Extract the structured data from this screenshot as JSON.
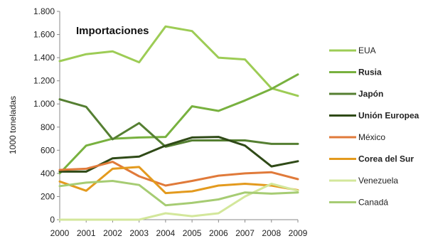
{
  "chart_data": {
    "type": "line",
    "title": "Importaciones",
    "ylabel": "1000 toneladas",
    "xlabel": "",
    "x": [
      "2000",
      "2001",
      "2002",
      "2003",
      "2004",
      "2005",
      "2006",
      "2007",
      "2008",
      "2009"
    ],
    "ylim": [
      0,
      1800
    ],
    "yticks": [
      0,
      200,
      400,
      600,
      800,
      1000,
      1200,
      1400,
      1600,
      1800
    ],
    "ytick_labels": [
      "0",
      "200",
      "400",
      "600",
      "800",
      "1.000",
      "1.200",
      "1.400",
      "1.600",
      "1.800"
    ],
    "grid": false,
    "legend": "right",
    "series": [
      {
        "name": "EUA",
        "color": "#9dcc55",
        "bold": false,
        "values": [
          1370,
          1430,
          1455,
          1360,
          1670,
          1630,
          1400,
          1385,
          1135,
          1070
        ]
      },
      {
        "name": "Rusia",
        "color": "#78b13f",
        "bold": true,
        "values": [
          400,
          640,
          700,
          710,
          715,
          980,
          940,
          1030,
          1130,
          1255
        ]
      },
      {
        "name": "Japón",
        "color": "#557f32",
        "bold": true,
        "values": [
          1040,
          975,
          695,
          835,
          630,
          685,
          685,
          685,
          655,
          655
        ]
      },
      {
        "name": "Unión Europea",
        "color": "#2f4a17",
        "bold": true,
        "values": [
          415,
          415,
          530,
          545,
          640,
          710,
          715,
          640,
          460,
          505
        ]
      },
      {
        "name": "México",
        "color": "#e07a3a",
        "bold": false,
        "values": [
          430,
          440,
          500,
          375,
          295,
          335,
          380,
          400,
          410,
          350
        ]
      },
      {
        "name": "Corea del Sur",
        "color": "#e39a1e",
        "bold": true,
        "values": [
          330,
          250,
          440,
          455,
          230,
          245,
          295,
          310,
          295,
          255
        ]
      },
      {
        "name": "Venezuela",
        "color": "#d3e79b",
        "bold": false,
        "values": [
          0,
          0,
          0,
          0,
          55,
          30,
          55,
          200,
          310,
          250
        ]
      },
      {
        "name": "Canadá",
        "color": "#a6cc73",
        "bold": false,
        "values": [
          290,
          320,
          335,
          300,
          125,
          145,
          175,
          235,
          225,
          235
        ]
      }
    ]
  }
}
